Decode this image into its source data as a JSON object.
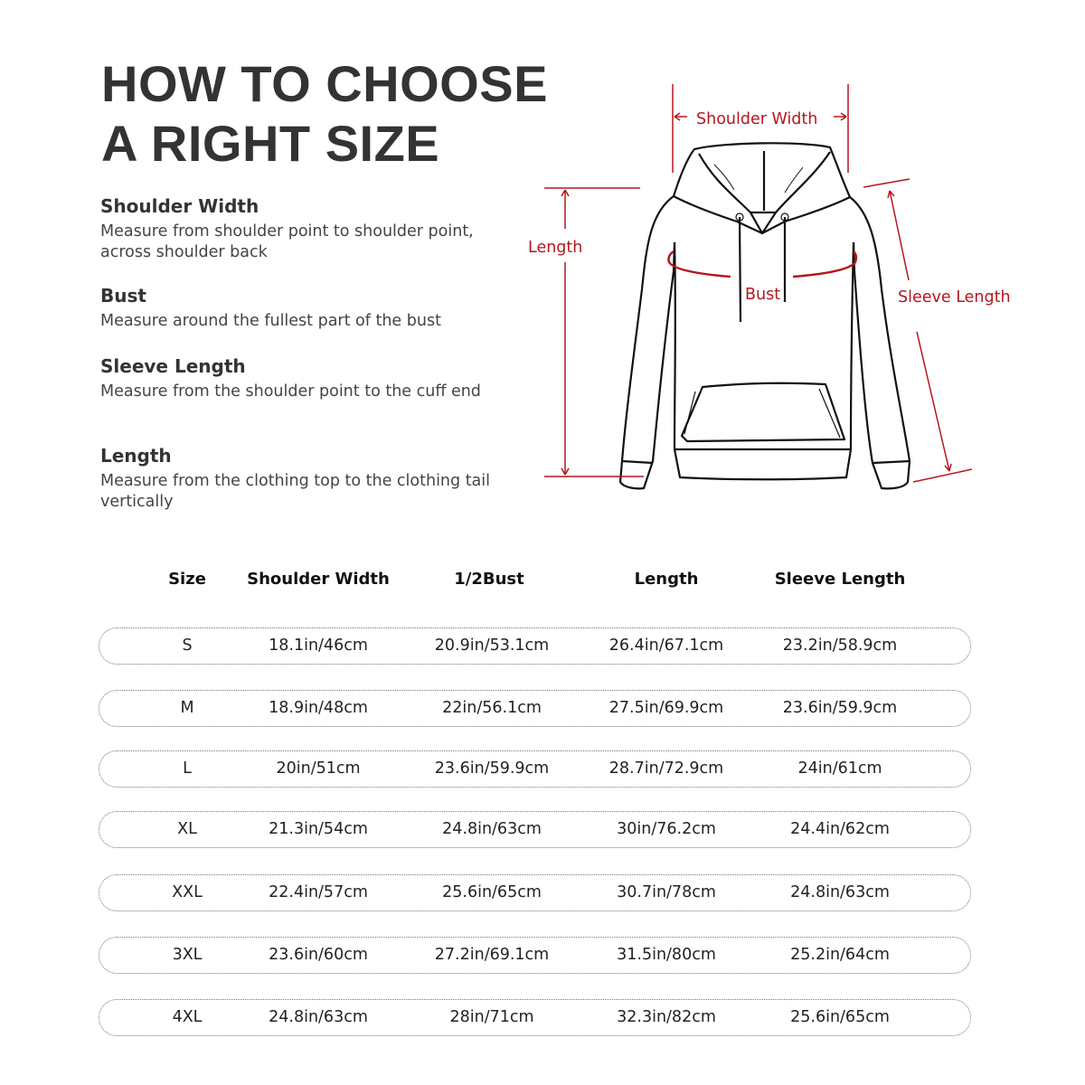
{
  "title": {
    "line1": "HOW TO CHOOSE",
    "line2": "A RIGHT SIZE"
  },
  "guide": [
    {
      "heading": "Shoulder Width",
      "text": "Measure from shoulder point to shoulder point, across shoulder back"
    },
    {
      "heading": "Bust",
      "text": "Measure around the fullest part of the bust"
    },
    {
      "heading": "Sleeve Length",
      "text": "Measure from the shoulder point to the cuff end"
    },
    {
      "heading": "Length",
      "text": "Measure from the clothing top to the clothing tail vertically"
    }
  ],
  "diagram": {
    "shoulder_width": "Shoulder Width",
    "length": "Length",
    "bust": "Bust",
    "sleeve_length": "Sleeve Length",
    "accent_color": "#b5161e"
  },
  "table": {
    "headers": [
      "Size",
      "Shoulder Width",
      "1/2Bust",
      "Length",
      "Sleeve Length"
    ],
    "rows": [
      [
        "S",
        "18.1in/46cm",
        "20.9in/53.1cm",
        "26.4in/67.1cm",
        "23.2in/58.9cm"
      ],
      [
        "M",
        "18.9in/48cm",
        "22in/56.1cm",
        "27.5in/69.9cm",
        "23.6in/59.9cm"
      ],
      [
        "L",
        "20in/51cm",
        "23.6in/59.9cm",
        "28.7in/72.9cm",
        "24in/61cm"
      ],
      [
        "XL",
        "21.3in/54cm",
        "24.8in/63cm",
        "30in/76.2cm",
        "24.4in/62cm"
      ],
      [
        "XXL",
        "22.4in/57cm",
        "25.6in/65cm",
        "30.7in/78cm",
        "24.8in/63cm"
      ],
      [
        "3XL",
        "23.6in/60cm",
        "27.2in/69.1cm",
        "31.5in/80cm",
        "25.2in/64cm"
      ],
      [
        "4XL",
        "24.8in/63cm",
        "28in/71cm",
        "32.3in/82cm",
        "25.6in/65cm"
      ]
    ]
  }
}
